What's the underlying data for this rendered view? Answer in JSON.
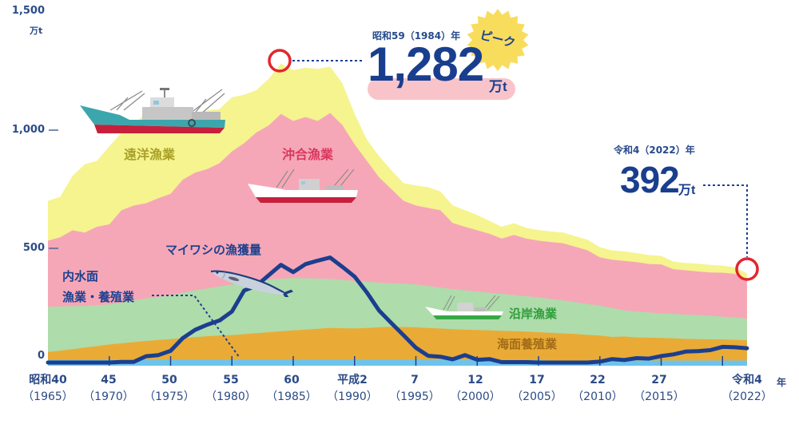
{
  "y_axis": {
    "ticks": [
      {
        "label": "1,500"
      },
      {
        "label": "1,000"
      },
      {
        "label": "500"
      },
      {
        "label": "0"
      }
    ],
    "unit": "万t"
  },
  "x_axis": {
    "labels": [
      {
        "era": "昭和40",
        "year": "（1965）"
      },
      {
        "era": "45",
        "year": "（1970）"
      },
      {
        "era": "50",
        "year": "（1975）"
      },
      {
        "era": "55",
        "year": "（1980）"
      },
      {
        "era": "60",
        "year": "（1985）"
      },
      {
        "era": "平成2",
        "year": "（1990）"
      },
      {
        "era": "7",
        "year": "（1995）"
      },
      {
        "era": "12",
        "year": "（2000）"
      },
      {
        "era": "17",
        "year": "（2005）"
      },
      {
        "era": "22",
        "year": "（2010）"
      },
      {
        "era": "27",
        "year": "（2015）"
      },
      {
        "era": "令和4",
        "year": "（2022）"
      }
    ],
    "unit": "年"
  },
  "annotations": {
    "peak": {
      "date": "昭和59（1984）年",
      "value": "1,282",
      "unit": "万t",
      "badge": "ピーク"
    },
    "latest": {
      "date": "令和4（2022）年",
      "value": "392",
      "unit": "万t"
    }
  },
  "series_labels": {
    "distant": "遠洋漁業",
    "offshore": "沖合漁業",
    "coastal": "沿岸漁業",
    "marine_aquaculture": "海面養殖業",
    "inland_line1": "内水面",
    "inland_line2": "漁業・養殖業",
    "sardine": "マイワシの漁獲量"
  },
  "colors": {
    "inland": "#6cc4ee",
    "marine_aquaculture": "#e9ab36",
    "coastal": "#aedcab",
    "offshore": "#f6a7b7",
    "distant": "#f5f48f",
    "sardine": "#1c3e8e",
    "highlight_circle": "#e3262f",
    "peak_pill": "#f9c4c9",
    "peak_badge": "#f8dc5c"
  },
  "chart_data": {
    "type": "area",
    "stacked": true,
    "title": "",
    "xlabel": "年",
    "ylabel": "万t",
    "ylim": [
      0,
      1500
    ],
    "yticks": [
      0,
      500,
      1000,
      1500
    ],
    "grid": false,
    "legend": "inline labels",
    "x": [
      1965,
      1966,
      1967,
      1968,
      1969,
      1970,
      1971,
      1972,
      1973,
      1974,
      1975,
      1976,
      1977,
      1978,
      1979,
      1980,
      1981,
      1982,
      1983,
      1984,
      1985,
      1986,
      1987,
      1988,
      1989,
      1990,
      1991,
      1992,
      1993,
      1994,
      1995,
      1996,
      1997,
      1998,
      1999,
      2000,
      2001,
      2002,
      2003,
      2004,
      2005,
      2006,
      2007,
      2008,
      2009,
      2010,
      2011,
      2012,
      2013,
      2014,
      2015,
      2016,
      2017,
      2018,
      2019,
      2020,
      2021,
      2022
    ],
    "xtick_labels": [
      "昭和40（1965）",
      "45（1970）",
      "50（1975）",
      "55（1980）",
      "60（1985）",
      "平成2（1990）",
      "7（1995）",
      "12（2000）",
      "17（2005）",
      "22（2010）",
      "27（2015）",
      "令和4（2022）"
    ],
    "series": [
      {
        "key": "inland",
        "name": "内水面漁業・養殖業",
        "type": "area",
        "color": "#6cc4ee",
        "values": [
          25,
          25,
          25,
          25,
          25,
          25,
          25,
          25,
          25,
          25,
          25,
          25,
          25,
          25,
          25,
          25,
          25,
          25,
          25,
          25,
          25,
          25,
          25,
          25,
          25,
          25,
          25,
          25,
          25,
          25,
          25,
          24,
          24,
          24,
          24,
          24,
          24,
          24,
          24,
          24,
          24,
          22,
          22,
          22,
          22,
          22,
          22,
          22,
          22,
          22,
          22,
          22,
          22,
          22,
          22,
          22,
          22,
          22
        ]
      },
      {
        "key": "marine_aquaculture",
        "name": "海面養殖業",
        "type": "area",
        "color": "#e9ab36",
        "values": [
          33,
          39,
          45,
          52,
          58,
          65,
          70,
          75,
          80,
          84,
          88,
          92,
          96,
          100,
          103,
          105,
          109,
          113,
          117,
          121,
          125,
          128,
          132,
          135,
          134,
          133,
          135,
          138,
          140,
          139,
          138,
          136,
          134,
          131,
          129,
          128,
          126,
          124,
          123,
          121,
          118,
          118,
          115,
          113,
          109,
          106,
          100,
          102,
          98,
          97,
          96,
          94,
          92,
          91,
          90,
          90,
          88,
          86
        ]
      },
      {
        "key": "coastal",
        "name": "沿岸漁業",
        "type": "area",
        "color": "#aedcab",
        "values": [
          192,
          188,
          183,
          177,
          174,
          170,
          173,
          177,
          180,
          183,
          187,
          193,
          199,
          203,
          209,
          215,
          218,
          220,
          223,
          223,
          222,
          218,
          213,
          208,
          205,
          202,
          197,
          190,
          185,
          184,
          182,
          178,
          174,
          170,
          167,
          163,
          160,
          157,
          153,
          150,
          148,
          143,
          140,
          135,
          131,
          127,
          123,
          111,
          110,
          107,
          104,
          104,
          103,
          102,
          100,
          96,
          94,
          92
        ]
      },
      {
        "key": "offshore",
        "name": "沖合漁業",
        "type": "area",
        "color": "#f6a7b7",
        "values": [
          281,
          293,
          322,
          311,
          333,
          340,
          392,
          403,
          405,
          419,
          430,
          480,
          500,
          507,
          523,
          565,
          593,
          632,
          655,
          700,
          667,
          685,
          669,
          705,
          658,
          580,
          513,
          447,
          400,
          352,
          335,
          332,
          328,
          281,
          270,
          260,
          250,
          235,
          255,
          245,
          241,
          242,
          243,
          235,
          228,
          205,
          205,
          210,
          210,
          206,
          208,
          190,
          188,
          185,
          184,
          187,
          186,
          165
        ]
      },
      {
        "key": "distant",
        "name": "遠洋漁業",
        "type": "area",
        "color": "#f5f48f",
        "values": [
          169,
          172,
          230,
          290,
          280,
          332,
          329,
          341,
          386,
          370,
          325,
          276,
          256,
          248,
          230,
          230,
          205,
          180,
          198,
          213,
          216,
          209,
          221,
          197,
          178,
          130,
          90,
          90,
          80,
          75,
          85,
          88,
          80,
          75,
          70,
          65,
          55,
          50,
          50,
          45,
          45,
          45,
          45,
          45,
          45,
          43,
          40,
          40,
          38,
          38,
          36,
          32,
          31,
          33,
          32,
          30,
          28,
          27
        ]
      },
      {
        "key": "sardine",
        "name": "マイワシの漁獲量",
        "type": "line",
        "stacked": false,
        "color": "#1c3e8e",
        "values": [
          1,
          1,
          1,
          1,
          1,
          2,
          6,
          6,
          30,
          35,
          53,
          107,
          142,
          164,
          182,
          220,
          309,
          329,
          374,
          418,
          387,
          421,
          436,
          449,
          410,
          368,
          301,
          224,
          171,
          119,
          66,
          32,
          28,
          17,
          35,
          15,
          18,
          5,
          5,
          5,
          3,
          3,
          3,
          3,
          3,
          7,
          18,
          14,
          22,
          20,
          31,
          38,
          50,
          52,
          56,
          70,
          68,
          64
        ]
      }
    ],
    "annotations": [
      {
        "x": 1984,
        "y": 1282,
        "text": "昭和59（1984）年 1,282万t",
        "badge": "ピーク"
      },
      {
        "x": 2022,
        "y": 392,
        "text": "令和4（2022）年 392万t"
      }
    ]
  }
}
